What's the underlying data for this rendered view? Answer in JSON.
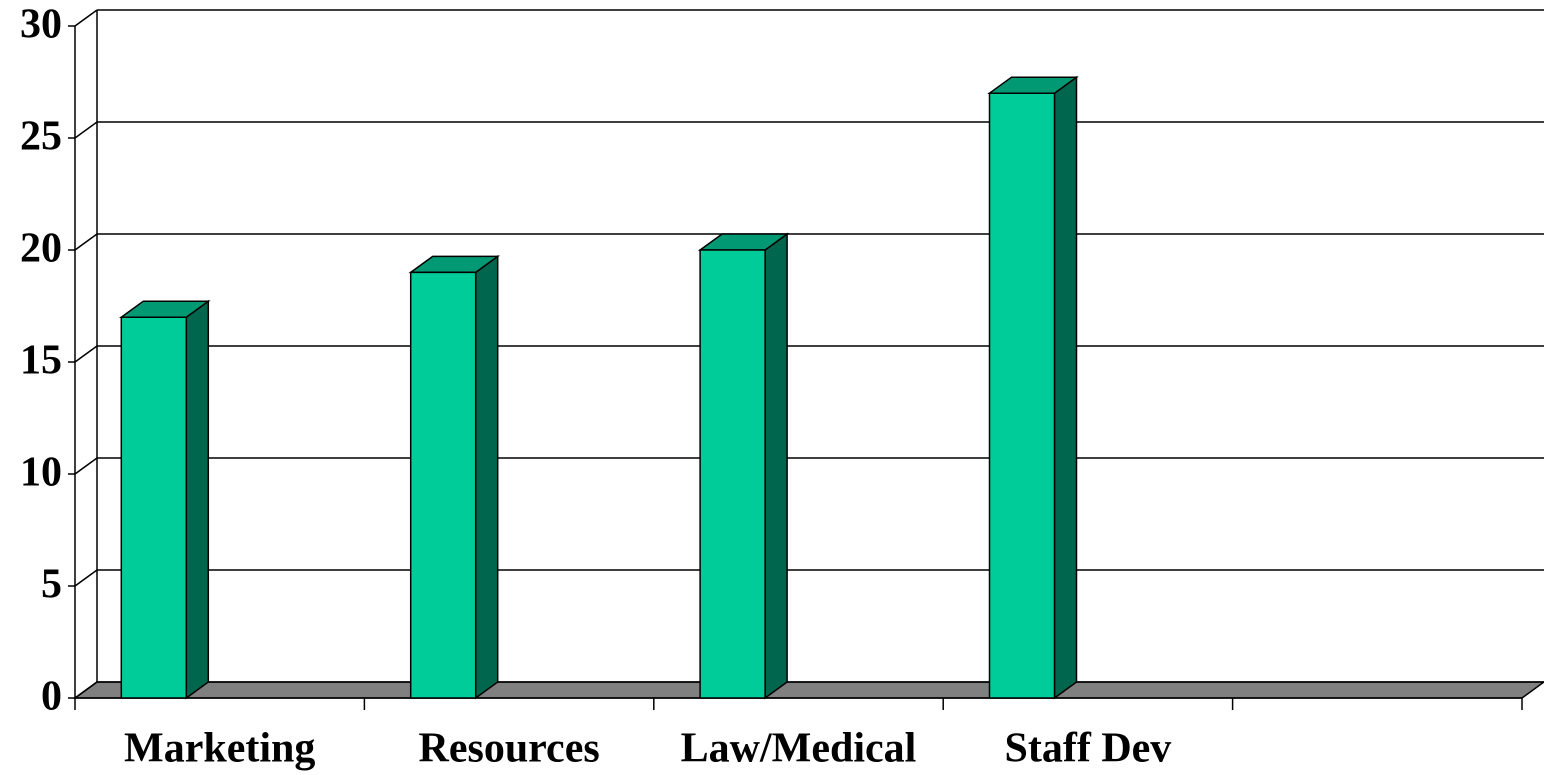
{
  "chart_data": {
    "type": "bar",
    "categories": [
      "Marketing",
      "Resources",
      "Law/Medical",
      "Staff Dev",
      null
    ],
    "values": [
      17,
      19,
      20,
      27,
      null
    ],
    "color": "#00cc99",
    "ylim": [
      0,
      30
    ],
    "yticks": [
      0,
      5,
      10,
      15,
      20,
      25,
      30
    ],
    "grid": true
  }
}
